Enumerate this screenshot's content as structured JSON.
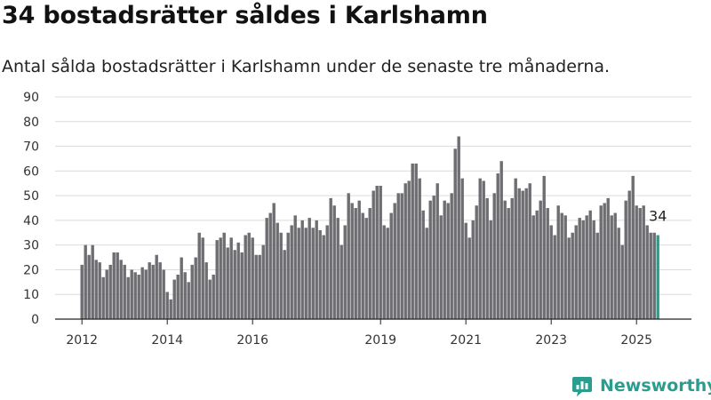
{
  "title": "34 bostadsrätter såldes i Karlshamn",
  "subtitle": "Antal sålda bostadsrätter i Karlshamn under de senaste tre månaderna.",
  "brand": {
    "name": "Newsworthy",
    "color": "#2a9d8f",
    "icon": "newsworthy-logo-icon"
  },
  "chart_data": {
    "type": "bar",
    "title": "34 bostadsrätter såldes i Karlshamn",
    "xlabel": "",
    "ylabel": "",
    "ylim": [
      0,
      90
    ],
    "yticks": [
      "0",
      "10",
      "20",
      "30",
      "40",
      "50",
      "60",
      "70",
      "80",
      "90"
    ],
    "xticks": [
      "2012",
      "2014",
      "2016",
      "2019",
      "2021",
      "2023",
      "2025"
    ],
    "grid": true,
    "bar_color": "#6e6d72",
    "highlight_color": "#2a9d8f",
    "last_value_label": "34",
    "values": [
      22,
      30,
      26,
      30,
      24,
      23,
      17,
      20,
      22,
      27,
      27,
      24,
      22,
      17,
      20,
      19,
      18,
      21,
      20,
      23,
      22,
      26,
      23,
      20,
      11,
      8,
      16,
      18,
      25,
      19,
      15,
      22,
      25,
      35,
      33,
      23,
      16,
      18,
      32,
      33,
      35,
      29,
      33,
      28,
      31,
      27,
      34,
      35,
      33,
      26,
      26,
      30,
      41,
      43,
      47,
      39,
      35,
      28,
      35,
      38,
      42,
      37,
      40,
      37,
      41,
      37,
      40,
      36,
      34,
      38,
      49,
      46,
      41,
      30,
      38,
      51,
      47,
      45,
      48,
      43,
      41,
      45,
      52,
      54,
      54,
      38,
      37,
      43,
      47,
      51,
      51,
      55,
      56,
      63,
      63,
      57,
      44,
      37,
      48,
      50,
      55,
      42,
      48,
      47,
      51,
      69,
      74,
      57,
      39,
      33,
      40,
      46,
      57,
      56,
      49,
      40,
      51,
      59,
      64,
      48,
      45,
      49,
      57,
      53,
      52,
      53,
      55,
      42,
      44,
      48,
      58,
      45,
      38,
      34,
      46,
      43,
      42,
      33,
      35,
      38,
      41,
      40,
      42,
      44,
      40,
      35,
      46,
      47,
      49,
      42,
      43,
      37,
      30,
      48,
      52,
      58,
      46,
      45,
      46,
      38,
      35,
      35,
      34
    ]
  }
}
